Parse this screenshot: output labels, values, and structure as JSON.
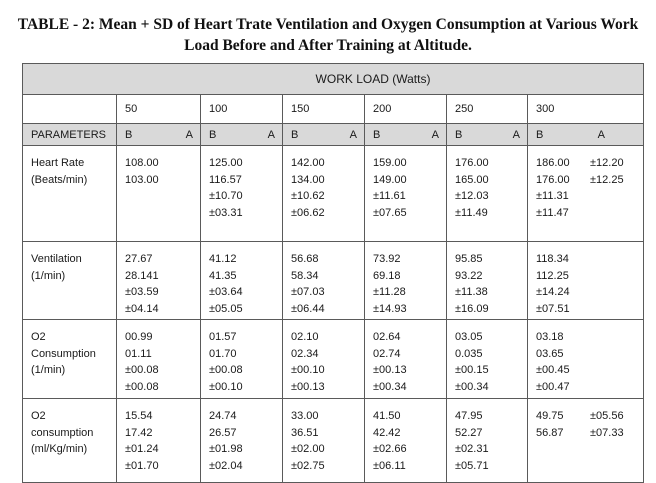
{
  "title": {
    "line1": "TABLE - 2: Mean + SD of Heart Trate Ventilation and Oxygen Consumption at Various Work",
    "line2": "Load Before and After Training at Altitude."
  },
  "table": {
    "work_load_label": "WORK LOAD (Watts)",
    "watts": [
      "50",
      "100",
      "150",
      "200",
      "250",
      "300"
    ],
    "parameters_label": "PARAMETERS",
    "before_label": "B",
    "after_label": "A",
    "rows": [
      {
        "param": [
          "Heart Rate",
          "(Beats/min)"
        ],
        "cells": [
          [
            "108.00",
            "103.00"
          ],
          [
            "125.00",
            "116.57",
            "±10.70",
            "±03.31"
          ],
          [
            "142.00",
            "134.00",
            "±10.62",
            "±06.62"
          ],
          [
            "159.00",
            "149.00",
            "±11.61",
            "±07.65"
          ],
          [
            "176.00",
            "165.00",
            "±12.03",
            "±11.49"
          ],
          [
            "186.00",
            "176.00",
            "±11.31",
            "±11.47"
          ]
        ],
        "extra": [
          "±12.20",
          "±12.25"
        ]
      },
      {
        "param": [
          "Ventilation",
          "(1/min)"
        ],
        "cells": [
          [
            "27.67",
            "28.141",
            "±03.59",
            "±04.14"
          ],
          [
            "41.12",
            "41.35",
            "±03.64",
            "±05.05"
          ],
          [
            "56.68",
            "58.34",
            "±07.03",
            "±06.44"
          ],
          [
            "73.92",
            "69.18",
            "±11.28",
            "±14.93"
          ],
          [
            "95.85",
            "93.22",
            "±11.38",
            "±16.09"
          ],
          [
            "118.34",
            "112.25",
            "±14.24",
            "±07.51"
          ]
        ],
        "extra": []
      },
      {
        "param": [
          "O2",
          "Consumption",
          "(1/min)"
        ],
        "cells": [
          [
            "00.99",
            "01.11",
            "±00.08",
            "±00.08"
          ],
          [
            "01.57",
            "01.70",
            "±00.08",
            "±00.10"
          ],
          [
            "02.10",
            "02.34",
            "±00.10",
            "±00.13"
          ],
          [
            "02.64",
            "02.74",
            "±00.13",
            "±00.34"
          ],
          [
            "03.05",
            "0.035",
            "±00.15",
            "±00.34"
          ],
          [
            "03.18",
            "03.65",
            "±00.45",
            "±00.47"
          ]
        ],
        "extra": []
      },
      {
        "param": [
          "O2",
          "consumption",
          "(ml/Kg/min)"
        ],
        "cells": [
          [
            "15.54",
            "17.42",
            "±01.24",
            "±01.70"
          ],
          [
            "24.74",
            "26.57",
            "±01.98",
            "±02.04"
          ],
          [
            "33.00",
            "36.51",
            "±02.00",
            "±02.75"
          ],
          [
            "41.50",
            "42.42",
            "±02.66",
            "±06.11"
          ],
          [
            "47.95",
            "52.27",
            "±02.31",
            "±05.71"
          ],
          [
            "49.75",
            "56.87"
          ]
        ],
        "extra": [
          "±05.56",
          "±07.33"
        ]
      }
    ]
  }
}
